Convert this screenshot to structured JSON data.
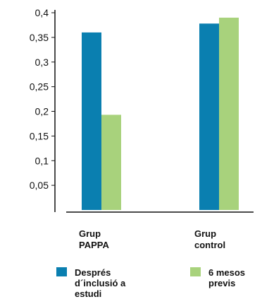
{
  "chart_data": {
    "type": "bar",
    "categories": [
      [
        "Grup",
        "PAPPA"
      ],
      [
        "Grup",
        "control"
      ]
    ],
    "series": [
      {
        "name": [
          "Després",
          "d´inclusió a",
          "estudi"
        ],
        "values": [
          0.36,
          0.378
        ],
        "color": "#0a7fb0"
      },
      {
        "name": [
          "6 mesos",
          "previs"
        ],
        "values": [
          0.193,
          0.39
        ],
        "color": "#a8d27c"
      }
    ],
    "yticks": [
      "0,4",
      "0,35",
      "0,3",
      "0,25",
      "0,2",
      "0,15",
      "0,1",
      "0,05"
    ],
    "ytick_values": [
      0.4,
      0.35,
      0.3,
      0.25,
      0.2,
      0.15,
      0.1,
      0.05
    ],
    "ylim": [
      0,
      0.4
    ],
    "grid": false,
    "legend_position": "bottom"
  }
}
